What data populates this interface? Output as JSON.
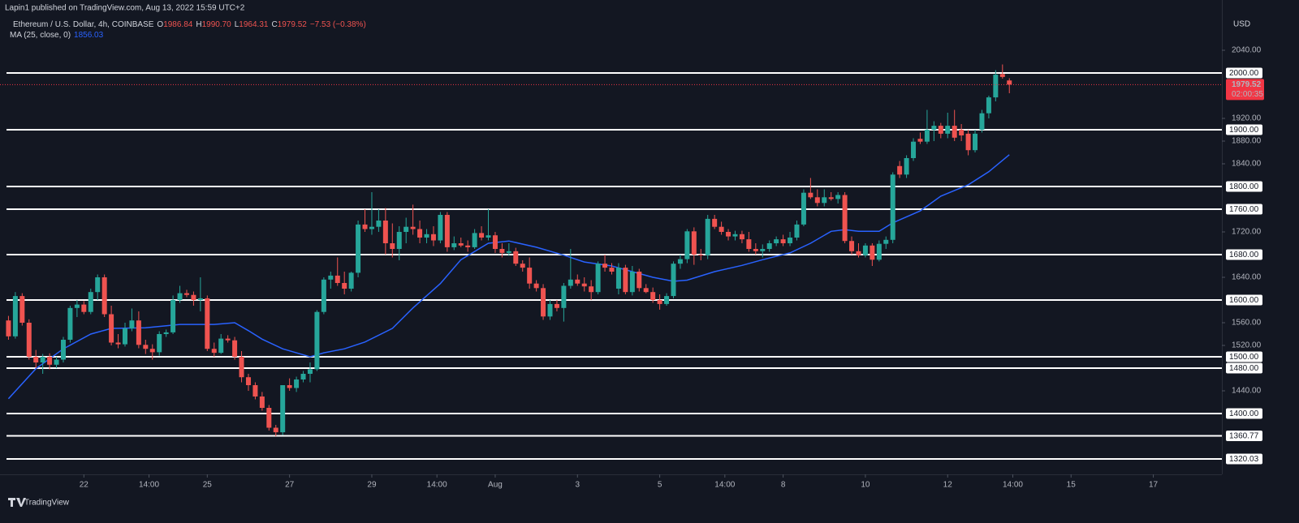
{
  "header": {
    "published": "Lapin1 published on TradingView.com, Aug 13, 2022 15:59 UTC+2",
    "symbol": "Ethereum / U.S. Dollar, 4h, COINBASE",
    "ohlc": [
      {
        "key": "O",
        "value": "1986.84"
      },
      {
        "key": "H",
        "value": "1990.70"
      },
      {
        "key": "L",
        "value": "1964.31"
      },
      {
        "key": "C",
        "value": "1979.52"
      }
    ],
    "change": "−7.53 (−0.38%)",
    "ma_label": "MA (25, close, 0)",
    "currency": "USD",
    "brand": "TradingView"
  },
  "chart_data": {
    "type": "candlestick",
    "up_color": "#26a69a",
    "down_color": "#ef5350",
    "ylim": [
      1292.86,
      2085.71
    ],
    "xlim": [
      -1,
      177
    ],
    "yticks": [
      {
        "value": 2040,
        "label": "2040.00"
      },
      {
        "value": 1920,
        "label": "1920.00"
      },
      {
        "value": 1880,
        "label": "1880.00"
      },
      {
        "value": 1840,
        "label": "1840.00"
      },
      {
        "value": 1720,
        "label": "1720.00"
      },
      {
        "value": 1640,
        "label": "1640.00"
      },
      {
        "value": 1560,
        "label": "1560.00"
      },
      {
        "value": 1520,
        "label": "1520.00"
      },
      {
        "value": 1440,
        "label": "1440.00"
      }
    ],
    "levels": [
      {
        "value": 2000,
        "label": "2000.00"
      },
      {
        "value": 1900,
        "label": "1900.00"
      },
      {
        "value": 1800,
        "label": "1800.00"
      },
      {
        "value": 1760,
        "label": "1760.00"
      },
      {
        "value": 1680,
        "label": "1680.00"
      },
      {
        "value": 1600,
        "label": "1600.00"
      },
      {
        "value": 1500,
        "label": "1500.00"
      },
      {
        "value": 1480,
        "label": "1480.00"
      },
      {
        "value": 1400,
        "label": "1400.00"
      },
      {
        "value": 1360.77,
        "label": "1360.77"
      },
      {
        "value": 1320.03,
        "label": "1320.03"
      }
    ],
    "level_color": "#ffffff",
    "xticks": [
      {
        "value": 11,
        "label": "22"
      },
      {
        "value": 20.5,
        "label": "14:00"
      },
      {
        "value": 29,
        "label": "25"
      },
      {
        "value": 41,
        "label": "27"
      },
      {
        "value": 53,
        "label": "29"
      },
      {
        "value": 62.5,
        "label": "14:00"
      },
      {
        "value": 71,
        "label": "Aug"
      },
      {
        "value": 83,
        "label": "3"
      },
      {
        "value": 95,
        "label": "5"
      },
      {
        "value": 104.5,
        "label": "14:00"
      },
      {
        "value": 113,
        "label": "8"
      },
      {
        "value": 125,
        "label": "10"
      },
      {
        "value": 137,
        "label": "12"
      },
      {
        "value": 146.5,
        "label": "14:00"
      },
      {
        "value": 155,
        "label": "15"
      },
      {
        "value": 167,
        "label": "17"
      }
    ],
    "candles": [
      [
        1564,
        1572,
        1530,
        1536
      ],
      [
        1536,
        1614,
        1532,
        1607
      ],
      [
        1607,
        1612,
        1555,
        1560
      ],
      [
        1560,
        1566,
        1495,
        1500
      ],
      [
        1500,
        1512,
        1480,
        1490
      ],
      [
        1490,
        1505,
        1470,
        1500
      ],
      [
        1500,
        1506,
        1478,
        1486
      ],
      [
        1486,
        1500,
        1480,
        1495
      ],
      [
        1495,
        1535,
        1490,
        1530
      ],
      [
        1530,
        1590,
        1525,
        1586
      ],
      [
        1586,
        1600,
        1570,
        1592
      ],
      [
        1592,
        1598,
        1575,
        1579
      ],
      [
        1579,
        1620,
        1575,
        1614
      ],
      [
        1614,
        1645,
        1600,
        1640
      ],
      [
        1640,
        1645,
        1570,
        1575
      ],
      [
        1575,
        1590,
        1520,
        1525
      ],
      [
        1525,
        1540,
        1515,
        1522
      ],
      [
        1522,
        1560,
        1518,
        1550
      ],
      [
        1550,
        1585,
        1545,
        1564
      ],
      [
        1564,
        1580,
        1515,
        1521
      ],
      [
        1521,
        1530,
        1505,
        1514
      ],
      [
        1514,
        1522,
        1495,
        1508
      ],
      [
        1508,
        1545,
        1502,
        1540
      ],
      [
        1540,
        1548,
        1535,
        1543
      ],
      [
        1543,
        1608,
        1540,
        1600
      ],
      [
        1600,
        1625,
        1595,
        1612
      ],
      [
        1612,
        1618,
        1605,
        1609
      ],
      [
        1609,
        1615,
        1590,
        1600
      ],
      [
        1600,
        1640,
        1580,
        1603
      ],
      [
        1603,
        1608,
        1510,
        1514
      ],
      [
        1514,
        1525,
        1500,
        1507
      ],
      [
        1507,
        1540,
        1505,
        1532
      ],
      [
        1532,
        1538,
        1525,
        1529
      ],
      [
        1529,
        1535,
        1495,
        1500
      ],
      [
        1500,
        1510,
        1455,
        1464
      ],
      [
        1464,
        1470,
        1440,
        1450
      ],
      [
        1450,
        1455,
        1425,
        1430
      ],
      [
        1430,
        1438,
        1405,
        1410
      ],
      [
        1410,
        1415,
        1370,
        1375
      ],
      [
        1375,
        1380,
        1360,
        1367
      ],
      [
        1367,
        1450,
        1362,
        1450
      ],
      [
        1450,
        1462,
        1440,
        1445
      ],
      [
        1445,
        1465,
        1438,
        1460
      ],
      [
        1460,
        1475,
        1455,
        1470
      ],
      [
        1470,
        1490,
        1455,
        1478
      ],
      [
        1478,
        1582,
        1475,
        1579
      ],
      [
        1579,
        1640,
        1575,
        1636
      ],
      [
        1636,
        1650,
        1620,
        1643
      ],
      [
        1643,
        1675,
        1625,
        1630
      ],
      [
        1630,
        1650,
        1610,
        1620
      ],
      [
        1620,
        1650,
        1615,
        1648
      ],
      [
        1648,
        1740,
        1640,
        1733
      ],
      [
        1733,
        1760,
        1720,
        1725
      ],
      [
        1725,
        1790,
        1715,
        1729
      ],
      [
        1729,
        1760,
        1720,
        1740
      ],
      [
        1740,
        1762,
        1680,
        1700
      ],
      [
        1700,
        1735,
        1675,
        1690
      ],
      [
        1690,
        1730,
        1670,
        1720
      ],
      [
        1720,
        1745,
        1700,
        1729
      ],
      [
        1729,
        1768,
        1715,
        1725
      ],
      [
        1725,
        1740,
        1700,
        1710
      ],
      [
        1710,
        1725,
        1700,
        1716
      ],
      [
        1716,
        1730,
        1695,
        1705
      ],
      [
        1705,
        1755,
        1700,
        1750
      ],
      [
        1750,
        1755,
        1685,
        1693
      ],
      [
        1693,
        1712,
        1688,
        1700
      ],
      [
        1700,
        1710,
        1693,
        1696
      ],
      [
        1696,
        1705,
        1685,
        1693
      ],
      [
        1693,
        1725,
        1690,
        1718
      ],
      [
        1718,
        1730,
        1705,
        1710
      ],
      [
        1710,
        1760,
        1705,
        1714
      ],
      [
        1714,
        1720,
        1683,
        1690
      ],
      [
        1690,
        1700,
        1675,
        1683
      ],
      [
        1683,
        1700,
        1678,
        1686
      ],
      [
        1686,
        1692,
        1660,
        1664
      ],
      [
        1664,
        1670,
        1650,
        1657
      ],
      [
        1657,
        1675,
        1620,
        1629
      ],
      [
        1629,
        1635,
        1615,
        1621
      ],
      [
        1621,
        1628,
        1565,
        1571
      ],
      [
        1571,
        1600,
        1565,
        1593
      ],
      [
        1593,
        1600,
        1580,
        1586
      ],
      [
        1586,
        1630,
        1562,
        1625
      ],
      [
        1625,
        1690,
        1620,
        1636
      ],
      [
        1636,
        1645,
        1625,
        1629
      ],
      [
        1629,
        1640,
        1615,
        1624
      ],
      [
        1624,
        1635,
        1600,
        1614
      ],
      [
        1614,
        1668,
        1610,
        1664
      ],
      [
        1664,
        1680,
        1650,
        1657
      ],
      [
        1657,
        1665,
        1645,
        1650
      ],
      [
        1620,
        1665,
        1610,
        1657
      ],
      [
        1657,
        1662,
        1610,
        1614
      ],
      [
        1614,
        1660,
        1608,
        1650
      ],
      [
        1650,
        1655,
        1615,
        1621
      ],
      [
        1621,
        1628,
        1612,
        1614
      ],
      [
        1614,
        1622,
        1595,
        1600
      ],
      [
        1600,
        1610,
        1583,
        1593
      ],
      [
        1593,
        1612,
        1590,
        1607
      ],
      [
        1607,
        1668,
        1603,
        1664
      ],
      [
        1664,
        1680,
        1655,
        1672
      ],
      [
        1672,
        1725,
        1665,
        1721
      ],
      [
        1721,
        1728,
        1662,
        1680
      ],
      [
        1680,
        1690,
        1670,
        1679
      ],
      [
        1679,
        1750,
        1672,
        1743
      ],
      [
        1743,
        1750,
        1725,
        1729
      ],
      [
        1729,
        1738,
        1715,
        1720
      ],
      [
        1720,
        1725,
        1705,
        1712
      ],
      [
        1712,
        1722,
        1705,
        1716
      ],
      [
        1716,
        1722,
        1700,
        1707
      ],
      [
        1707,
        1720,
        1685,
        1690
      ],
      [
        1690,
        1700,
        1680,
        1686
      ],
      [
        1686,
        1698,
        1675,
        1690
      ],
      [
        1690,
        1705,
        1685,
        1700
      ],
      [
        1700,
        1712,
        1695,
        1707
      ],
      [
        1707,
        1715,
        1695,
        1700
      ],
      [
        1700,
        1720,
        1695,
        1710
      ],
      [
        1710,
        1740,
        1705,
        1733
      ],
      [
        1733,
        1795,
        1730,
        1789
      ],
      [
        1789,
        1815,
        1778,
        1781
      ],
      [
        1781,
        1795,
        1765,
        1771
      ],
      [
        1771,
        1795,
        1765,
        1781
      ],
      [
        1781,
        1790,
        1775,
        1778
      ],
      [
        1778,
        1790,
        1770,
        1785
      ],
      [
        1785,
        1790,
        1700,
        1704
      ],
      [
        1704,
        1712,
        1680,
        1686
      ],
      [
        1686,
        1700,
        1675,
        1679
      ],
      [
        1679,
        1700,
        1675,
        1696
      ],
      [
        1696,
        1700,
        1660,
        1671
      ],
      [
        1671,
        1705,
        1668,
        1699
      ],
      [
        1699,
        1712,
        1690,
        1706
      ],
      [
        1706,
        1825,
        1700,
        1821
      ],
      [
        1836,
        1845,
        1815,
        1821
      ],
      [
        1821,
        1855,
        1815,
        1850
      ],
      [
        1850,
        1885,
        1845,
        1879
      ],
      [
        1884,
        1895,
        1875,
        1879
      ],
      [
        1879,
        1935,
        1875,
        1900
      ],
      [
        1900,
        1915,
        1880,
        1907
      ],
      [
        1907,
        1912,
        1885,
        1893
      ],
      [
        1893,
        1930,
        1885,
        1907
      ],
      [
        1907,
        1935,
        1880,
        1886
      ],
      [
        1900,
        1910,
        1880,
        1890
      ],
      [
        1893,
        1900,
        1855,
        1864
      ],
      [
        1864,
        1900,
        1860,
        1893
      ],
      [
        1900,
        1935,
        1895,
        1929
      ],
      [
        1929,
        1960,
        1920,
        1957
      ],
      [
        1957,
        2005,
        1950,
        1997
      ],
      [
        1998,
        2015,
        1990,
        1993
      ],
      [
        1986.84,
        1990.7,
        1964.31,
        1979.52
      ]
    ],
    "ma": {
      "color": "#2962ff",
      "x": [
        0,
        4,
        8,
        12,
        15,
        20,
        25,
        30,
        33,
        35,
        37,
        40,
        44,
        46,
        49,
        52,
        56,
        59,
        63,
        66,
        70,
        73,
        77,
        81,
        84,
        88,
        91,
        94,
        97,
        99,
        103,
        107,
        110,
        114,
        117,
        120,
        122,
        124,
        127,
        129,
        133,
        136,
        140,
        143,
        146
      ],
      "values": [
        1426,
        1479,
        1514,
        1540,
        1550,
        1551,
        1557,
        1557,
        1560,
        1546,
        1531,
        1514,
        1500,
        1507,
        1514,
        1526,
        1550,
        1586,
        1629,
        1671,
        1700,
        1704,
        1693,
        1679,
        1667,
        1660,
        1650,
        1640,
        1633,
        1635,
        1650,
        1661,
        1671,
        1683,
        1700,
        1721,
        1724,
        1721,
        1721,
        1736,
        1757,
        1783,
        1803,
        1826,
        1856.03
      ]
    },
    "last_price": 1979.52,
    "countdown": "02:00:35",
    "last_color": "#f23645"
  }
}
